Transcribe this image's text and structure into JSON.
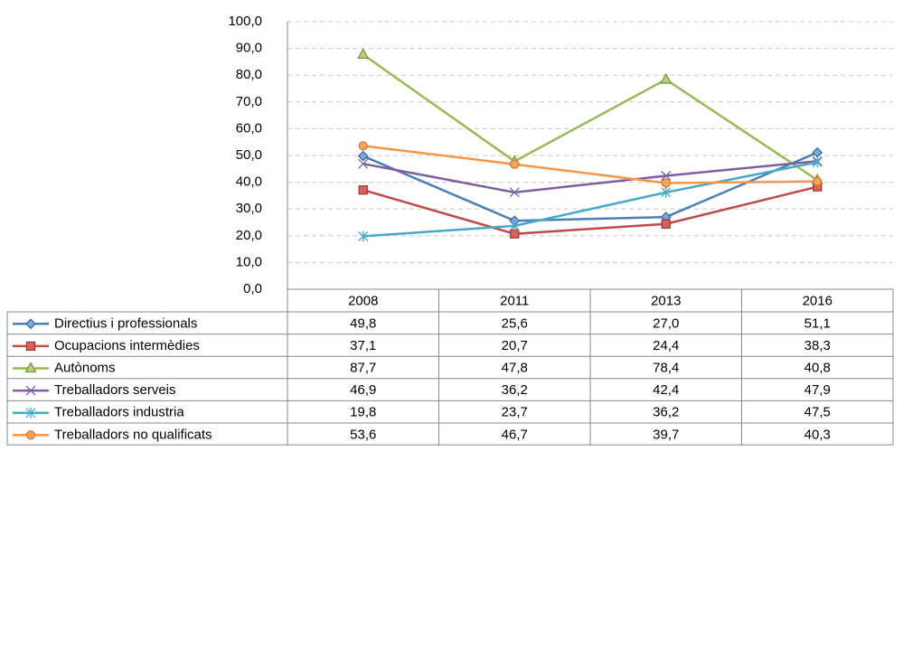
{
  "chart_data": {
    "type": "line",
    "categories": [
      "2008",
      "2011",
      "2013",
      "2016"
    ],
    "ylim": [
      0,
      100
    ],
    "yticks": [
      {
        "value": 0,
        "label": "0,0"
      },
      {
        "value": 10,
        "label": "10,0"
      },
      {
        "value": 20,
        "label": "20,0"
      },
      {
        "value": 30,
        "label": "30,0"
      },
      {
        "value": 40,
        "label": "40,0"
      },
      {
        "value": 50,
        "label": "50,0"
      },
      {
        "value": 60,
        "label": "60,0"
      },
      {
        "value": 70,
        "label": "70,0"
      },
      {
        "value": 80,
        "label": "80,0"
      },
      {
        "value": 90,
        "label": "90,0"
      },
      {
        "value": 100,
        "label": "100,0"
      }
    ],
    "grid": true,
    "series": [
      {
        "name": "Directius i professionals",
        "color": "#4a7ebb",
        "marker": "diamond",
        "values": [
          49.8,
          25.6,
          27.0,
          51.1
        ],
        "value_labels": [
          "49,8",
          "25,6",
          "27,0",
          "51,1"
        ]
      },
      {
        "name": "Ocupacions intermèdies",
        "color": "#be4b48",
        "marker": "square",
        "values": [
          37.1,
          20.7,
          24.4,
          38.3
        ],
        "value_labels": [
          "37,1",
          "20,7",
          "24,4",
          "38,3"
        ]
      },
      {
        "name": "Autònoms",
        "color": "#98b954",
        "marker": "triangle",
        "values": [
          87.7,
          47.8,
          78.4,
          40.8
        ],
        "value_labels": [
          "87,7",
          "47,8",
          "78,4",
          "40,8"
        ]
      },
      {
        "name": "Treballadors serveis",
        "color": "#7d5fa0",
        "marker": "x",
        "values": [
          46.9,
          36.2,
          42.4,
          47.9
        ],
        "value_labels": [
          "46,9",
          "36,2",
          "42,4",
          "47,9"
        ]
      },
      {
        "name": "Treballadors industria",
        "color": "#46aac5",
        "marker": "star",
        "values": [
          19.8,
          23.7,
          36.2,
          47.5
        ],
        "value_labels": [
          "19,8",
          "23,7",
          "36,2",
          "47,5"
        ]
      },
      {
        "name": "Treballadors no qualificats",
        "color": "#f79646",
        "marker": "circle",
        "values": [
          53.6,
          46.7,
          39.7,
          40.3
        ],
        "value_labels": [
          "53,6",
          "46,7",
          "39,7",
          "40,3"
        ]
      }
    ]
  }
}
